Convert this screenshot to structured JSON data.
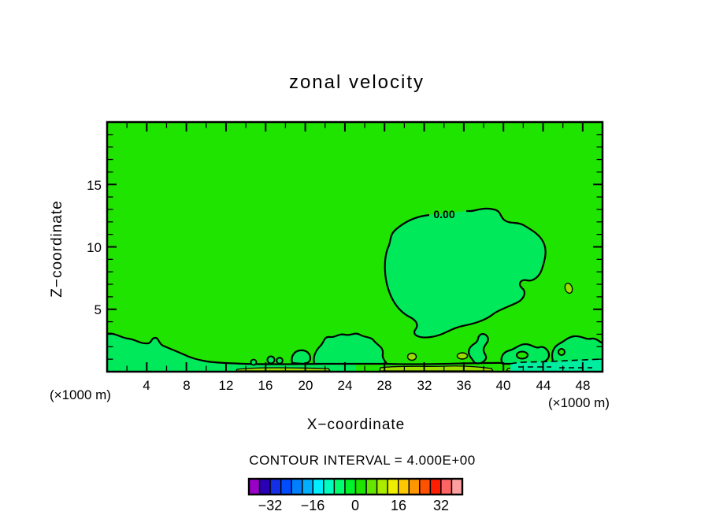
{
  "title": "zonal velocity",
  "plot": {
    "contour_label": "0.00",
    "contour_interval_text": "CONTOUR INTERVAL = 4.000E+00"
  },
  "axes": {
    "x": {
      "label": "X−coordinate",
      "unit": "(×1000 m)",
      "min": 0,
      "max": 50,
      "minor_step": 2,
      "major_step": 4,
      "tick_labels": [
        "4",
        "8",
        "12",
        "16",
        "20",
        "24",
        "28",
        "32",
        "36",
        "40",
        "44",
        "48"
      ]
    },
    "z": {
      "label": "Z−coordinate",
      "unit": "(×1000 m)",
      "min": 0,
      "max": 20,
      "minor_step": 1,
      "major_step": 5,
      "tick_labels": [
        "5",
        "10",
        "15"
      ]
    }
  },
  "colors": {
    "background": "#1fe400",
    "band_neg4_0": "#00e95b",
    "band_4_8": "#9ade00",
    "band_neg8_neg4": "#00eda0",
    "contour_line": "#000000"
  },
  "colorbar": {
    "labels": [
      "−32",
      "−16",
      "0",
      "16",
      "32"
    ],
    "colors": [
      "#9a00c8",
      "#2a00b4",
      "#1430e6",
      "#004cff",
      "#0080ff",
      "#00b0ff",
      "#00eeff",
      "#00ffbe",
      "#00ff6e",
      "#00f228",
      "#1fe400",
      "#64e600",
      "#aaec00",
      "#eeee00",
      "#ffc800",
      "#ff9600",
      "#ff5200",
      "#ff1e00",
      "#ff6464",
      "#ffa0a0"
    ]
  },
  "chart_data": {
    "type": "heatmap",
    "subtype": "filled_contour",
    "title": "zonal velocity",
    "xlabel": "X−coordinate",
    "ylabel": "Z−coordinate",
    "x_unit": "×1000 m",
    "y_unit": "×1000 m",
    "xlim": [
      0,
      50
    ],
    "ylim": [
      0,
      20
    ],
    "x_ticks": [
      4,
      8,
      12,
      16,
      20,
      24,
      28,
      32,
      36,
      40,
      44,
      48
    ],
    "y_ticks": [
      5,
      10,
      15
    ],
    "grid": false,
    "contour_interval": 4.0,
    "contour_interval_label": "CONTOUR INTERVAL = 4.000E+00",
    "contour_levels_shown": [
      -8,
      -4,
      0,
      4
    ],
    "negative_contours_dashed": true,
    "labeled_contours": [
      {
        "value": 0.0,
        "label": "0.00",
        "x_km": 34,
        "z_km": 12.7
      }
    ],
    "colorbar": {
      "min": -40,
      "max": 40,
      "step": 4,
      "n_cells": 20,
      "tick_values": [
        -32,
        -16,
        0,
        16,
        32
      ],
      "position": "bottom"
    },
    "field_summary": [
      {
        "band": "0 to 4",
        "coverage": "background green filling most of the domain"
      },
      {
        "band": "-4 to 0",
        "coverage": "large closed region near x=28-45, z=4-13 (labeled 0.00); shallow surface layer x=0-14; many small surface blobs near x=16-28, 33-45; region at right edge x=45-50, z=2-4"
      },
      {
        "band": "4 to 8",
        "coverage": "thin slivers right at the surface near x=13-23 and x=27-39, small spots near x=30-36"
      },
      {
        "band": "-8 to -4",
        "coverage": "shallow surface pocket near x=41-50 bounded by dashed contours"
      }
    ]
  }
}
